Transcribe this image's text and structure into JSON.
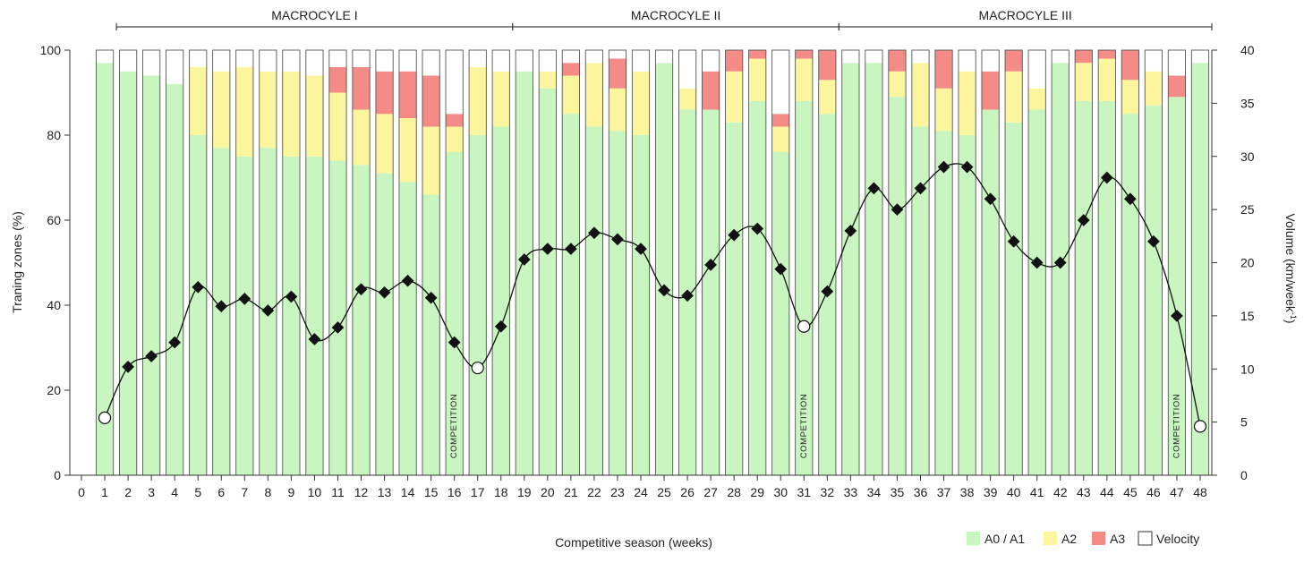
{
  "chart_data": {
    "type": "bar",
    "xlabel": "Competitive season (weeks)",
    "ylabel": "Traning zones (%)",
    "y2label": "Volume (km/week",
    "y2label_sup": "-1",
    "y2label_close": ")",
    "ylim": [
      0,
      100
    ],
    "y2lim": [
      0,
      40
    ],
    "yticks": [
      0,
      20,
      40,
      60,
      80,
      100
    ],
    "y2ticks": [
      0,
      5,
      10,
      15,
      20,
      25,
      30,
      35,
      40
    ],
    "xticks": [
      "0",
      "1",
      "2",
      "3",
      "4",
      "5",
      "6",
      "7",
      "8",
      "9",
      "10",
      "11",
      "12",
      "13",
      "14",
      "15",
      "16",
      "17",
      "18",
      "19",
      "20",
      "21",
      "22",
      "23",
      "24",
      "25",
      "26",
      "27",
      "28",
      "29",
      "30",
      "31",
      "32",
      "33",
      "34",
      "35",
      "36",
      "37",
      "38",
      "39",
      "40",
      "41",
      "42",
      "43",
      "44",
      "45",
      "46",
      "47",
      "48"
    ],
    "categories": [
      "1",
      "2",
      "3",
      "4",
      "5",
      "6",
      "7",
      "8",
      "9",
      "10",
      "11",
      "12",
      "13",
      "14",
      "15",
      "16",
      "17",
      "18",
      "19",
      "20",
      "21",
      "22",
      "23",
      "24",
      "25",
      "26",
      "27",
      "28",
      "29",
      "30",
      "31",
      "32",
      "33",
      "34",
      "35",
      "36",
      "37",
      "38",
      "39",
      "40",
      "41",
      "42",
      "43",
      "44",
      "45",
      "46",
      "47",
      "48"
    ],
    "series": [
      {
        "name": "A0 / A1",
        "color": "#c9f5c0",
        "values": [
          97,
          95,
          94,
          92,
          80,
          77,
          75,
          77,
          75,
          75,
          74,
          73,
          71,
          69,
          66,
          76,
          80,
          82,
          95,
          91,
          85,
          82,
          81,
          80,
          97,
          86,
          86,
          83,
          88,
          76,
          88,
          85,
          97,
          97,
          89,
          82,
          81,
          80,
          86,
          83,
          86,
          97,
          88,
          88,
          85,
          87,
          89,
          97
        ]
      },
      {
        "name": "A2",
        "color": "#fbf59e",
        "values": [
          0,
          0,
          0,
          0,
          16,
          18,
          21,
          18,
          20,
          19,
          16,
          13,
          14,
          15,
          16,
          6,
          16,
          13,
          0,
          4,
          9,
          15,
          10,
          15,
          0,
          5,
          0,
          12,
          10,
          6,
          10,
          8,
          0,
          0,
          6,
          15,
          10,
          15,
          0,
          12,
          5,
          0,
          9,
          10,
          8,
          8,
          0,
          0
        ]
      },
      {
        "name": "A3",
        "color": "#f48b87",
        "values": [
          0,
          0,
          0,
          0,
          0,
          0,
          0,
          0,
          0,
          0,
          6,
          10,
          10,
          11,
          12,
          3,
          0,
          0,
          0,
          0,
          3,
          0,
          7,
          0,
          0,
          0,
          9,
          5,
          2,
          3,
          2,
          7,
          0,
          0,
          5,
          0,
          9,
          0,
          9,
          5,
          0,
          0,
          3,
          2,
          7,
          0,
          5,
          0
        ]
      },
      {
        "name": "Velocity",
        "color": "#ffffff",
        "values": [
          3,
          5,
          6,
          8,
          4,
          5,
          4,
          5,
          5,
          6,
          4,
          4,
          5,
          5,
          6,
          15,
          4,
          5,
          5,
          5,
          3,
          3,
          2,
          5,
          3,
          9,
          5,
          0,
          0,
          15,
          0,
          0,
          3,
          3,
          0,
          3,
          0,
          5,
          5,
          0,
          9,
          3,
          0,
          0,
          0,
          5,
          6,
          3
        ]
      }
    ],
    "volume_series": {
      "name": "Volume",
      "x": [
        1,
        2,
        3,
        4,
        5,
        6,
        7,
        8,
        9,
        10,
        11,
        12,
        13,
        14,
        15,
        16,
        17,
        18,
        19,
        20,
        21,
        22,
        23,
        24,
        25,
        26,
        27,
        28,
        29,
        30,
        31,
        32,
        33,
        34,
        35,
        36,
        37,
        38,
        39,
        40,
        41,
        42,
        43,
        44,
        45,
        46,
        47,
        48
      ],
      "values": [
        5.4,
        10.2,
        11.2,
        12.5,
        17.7,
        15.9,
        16.6,
        15.5,
        16.8,
        12.8,
        13.9,
        17.5,
        17.2,
        18.3,
        16.7,
        12.5,
        10.1,
        14.0,
        20.3,
        21.3,
        21.3,
        22.8,
        22.2,
        21.3,
        17.4,
        16.9,
        19.8,
        22.6,
        23.2,
        19.4,
        14.0,
        17.3,
        23.0,
        27.0,
        25.0,
        27.0,
        29.0,
        29.0,
        26.0,
        22.0,
        20.0,
        20.0,
        24.0,
        28.0,
        26.0,
        22.0,
        15.0,
        4.6
      ],
      "open_markers": [
        1,
        17,
        31,
        48
      ]
    },
    "competition_weeks": [
      16,
      31,
      47
    ],
    "competition_label": "COMPETITION",
    "macrocycles": [
      {
        "label": "MACROCYLE I",
        "start_week": 1.5,
        "end_week": 18.5
      },
      {
        "label": "MACROCYLE II",
        "start_week": 18.5,
        "end_week": 32.5
      },
      {
        "label": "MACROCYLE III",
        "start_week": 32.5,
        "end_week": 48.5
      }
    ],
    "legend": {
      "placement": "bottom-right",
      "items": [
        {
          "label": "A0 / A1",
          "color": "#c9f5c0"
        },
        {
          "label": "A2",
          "color": "#fbf59e"
        },
        {
          "label": "A3",
          "color": "#f48b87"
        },
        {
          "label": "Velocity",
          "color": "#ffffff"
        }
      ]
    }
  }
}
